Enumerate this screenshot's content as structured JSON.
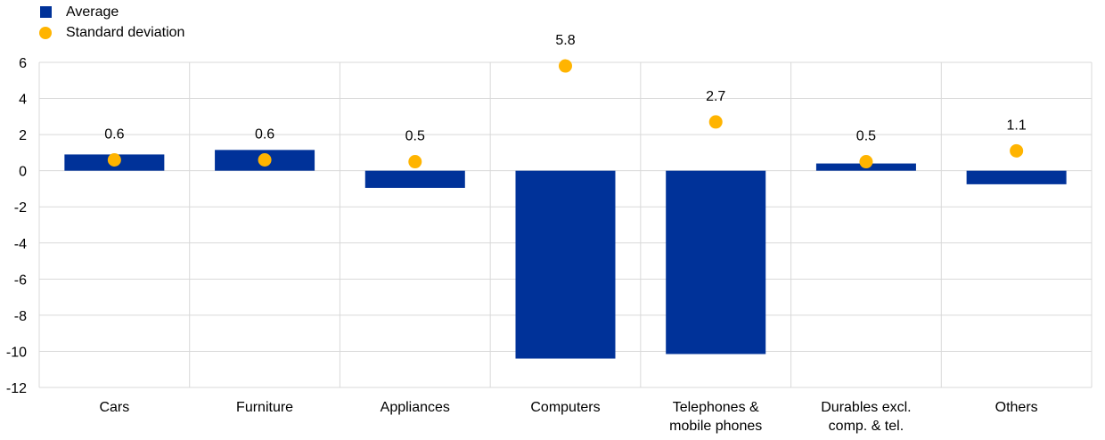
{
  "chart_data": {
    "type": "bar",
    "categories": [
      [
        "Cars"
      ],
      [
        "Furniture"
      ],
      [
        "Appliances"
      ],
      [
        "Computers"
      ],
      [
        "Telephones &",
        "mobile phones"
      ],
      [
        "Durables excl.",
        "comp. & tel."
      ],
      [
        "Others"
      ]
    ],
    "series": [
      {
        "name": "Average",
        "kind": "bar",
        "color": "#003299",
        "values": [
          0.9,
          1.15,
          -0.95,
          -10.4,
          -10.15,
          0.4,
          -0.75
        ]
      },
      {
        "name": "Standard deviation",
        "kind": "dot",
        "color": "#FFB400",
        "values": [
          0.6,
          0.6,
          0.5,
          5.8,
          2.7,
          0.5,
          1.1
        ],
        "labels": [
          "0.6",
          "0.6",
          "0.5",
          "5.8",
          "2.7",
          "0.5",
          "1.1"
        ]
      }
    ],
    "ylim": [
      -12,
      6
    ],
    "yticks": [
      6,
      4,
      2,
      0,
      -2,
      -4,
      -6,
      -8,
      -10,
      -12
    ],
    "ytick_labels": [
      "6",
      "4",
      "2",
      "0",
      "-2",
      "-4",
      "-6",
      "-8",
      "-10",
      "-12"
    ],
    "xlabel": "",
    "ylabel": "",
    "grid": true,
    "legend_position": "top-left"
  }
}
